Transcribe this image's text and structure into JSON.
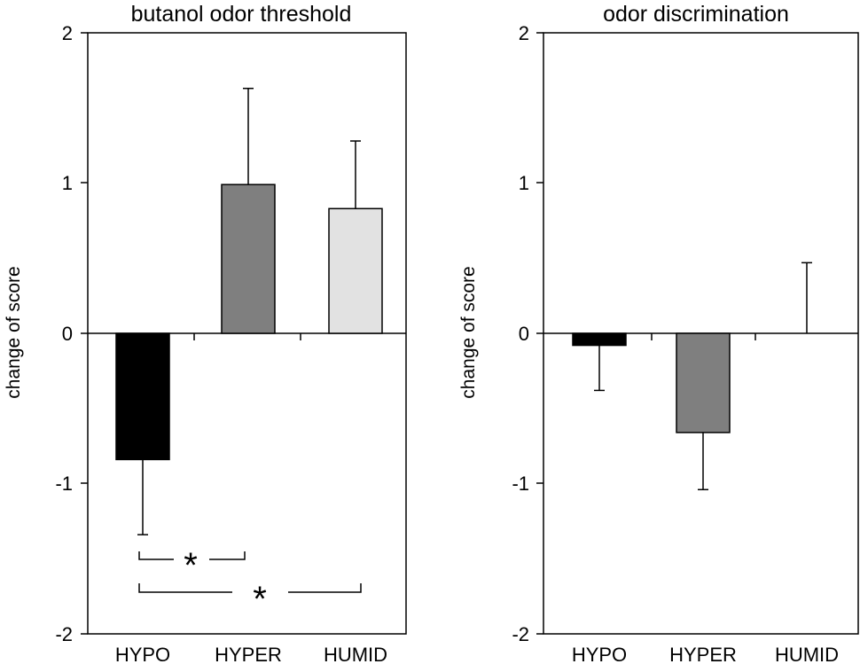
{
  "chart_data": [
    {
      "type": "bar",
      "title": "butanol odor threshold",
      "ylabel": "change of score",
      "xlabel": "",
      "categories": [
        "HYPO",
        "HYPER",
        "HUMID"
      ],
      "values": [
        -0.84,
        0.99,
        0.83
      ],
      "errors": [
        0.5,
        0.64,
        0.45
      ],
      "ylim": [
        -2,
        2
      ],
      "yticks": [
        "2",
        "1",
        "0",
        "-1",
        "-2"
      ],
      "yticks_values": [
        2,
        1,
        0,
        -1,
        -2
      ],
      "grid": false,
      "significance": [
        {
          "from": "HYPO",
          "to": "HYPER",
          "label": "*"
        },
        {
          "from": "HYPO",
          "to": "HUMID",
          "label": "*"
        }
      ]
    },
    {
      "type": "bar",
      "title": "odor discrimination",
      "ylabel": "change of score",
      "xlabel": "",
      "categories": [
        "HYPO",
        "HYPER",
        "HUMID"
      ],
      "values": [
        -0.08,
        -0.66,
        0.0
      ],
      "errors": [
        0.3,
        0.38,
        0.47
      ],
      "ylim": [
        -2,
        2
      ],
      "yticks": [
        "2",
        "1",
        "0",
        "-1",
        "-2"
      ],
      "yticks_values": [
        2,
        1,
        0,
        -1,
        -2
      ],
      "grid": false,
      "significance": []
    }
  ],
  "colors": {
    "HYPO": "#000000",
    "HYPER": "#7f7f7f",
    "HUMID": "#e2e2e2"
  }
}
